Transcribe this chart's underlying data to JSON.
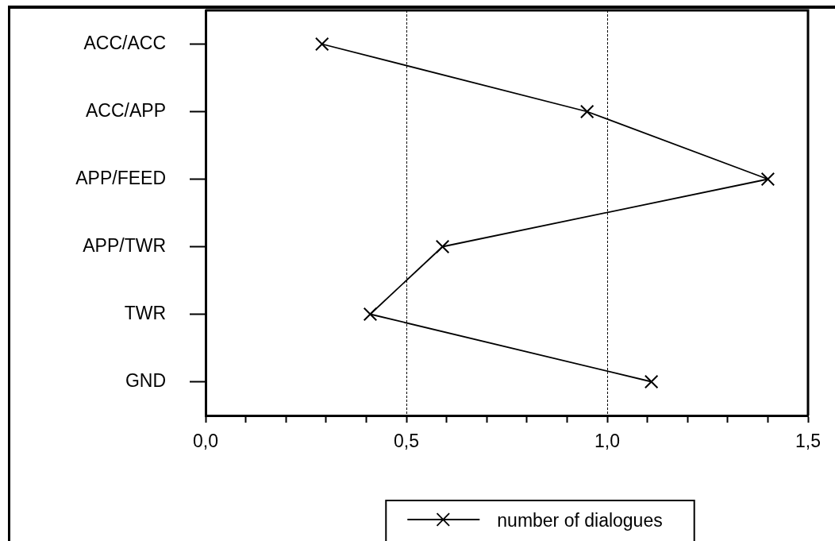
{
  "chart_data": {
    "type": "line",
    "orientation": "horizontal",
    "categories": [
      "ACC/ACC",
      "ACC/APP",
      "APP/FEED",
      "APP/TWR",
      "TWR",
      "GND"
    ],
    "series": [
      {
        "name": "number of dialogues",
        "color": "#000000",
        "values": [
          0.29,
          0.95,
          1.4,
          0.59,
          0.41,
          1.11
        ]
      }
    ],
    "xlim": [
      0,
      1.5
    ],
    "xticks": [
      {
        "value": 0,
        "label": "0,0"
      },
      {
        "value": 0.1,
        "label": null
      },
      {
        "value": 0.2,
        "label": null
      },
      {
        "value": 0.3,
        "label": null
      },
      {
        "value": 0.4,
        "label": null
      },
      {
        "value": 0.5,
        "label": "0,5"
      },
      {
        "value": 0.6,
        "label": null
      },
      {
        "value": 0.7,
        "label": null
      },
      {
        "value": 0.8,
        "label": null
      },
      {
        "value": 0.9,
        "label": null
      },
      {
        "value": 1,
        "label": "1,0"
      },
      {
        "value": 1.1,
        "label": null
      },
      {
        "value": 1.2,
        "label": null
      },
      {
        "value": 1.3,
        "label": null
      },
      {
        "value": 1.4,
        "label": null
      },
      {
        "value": 1.5,
        "label": "1,5"
      }
    ],
    "grid": "x",
    "legend": "bottom",
    "marker": "cross",
    "line_style": "solid"
  }
}
